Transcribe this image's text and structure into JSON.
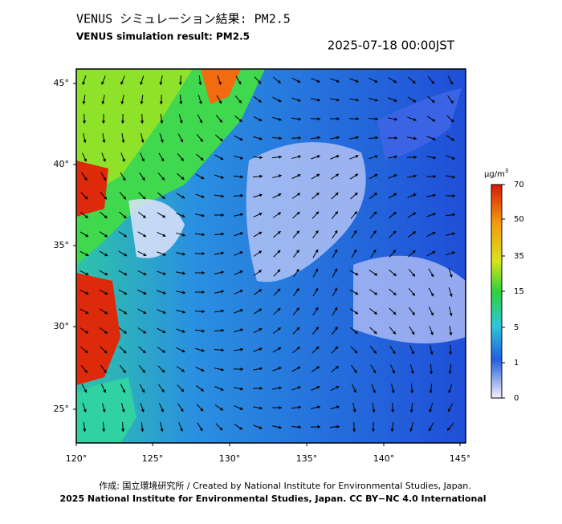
{
  "header": {
    "title_ja": "VENUS シミュレーション結果: PM2.5",
    "title_en": "VENUS simulation result: PM2.5",
    "timestamp": "2025-07-18 00:00JST"
  },
  "map": {
    "lat_labels": [
      "45°",
      "40°",
      "35°",
      "30°",
      "25°"
    ],
    "lon_labels": [
      "120°",
      "125°",
      "130°",
      "135°",
      "140°",
      "145°"
    ]
  },
  "colorbar": {
    "unit": "μg/m",
    "unit_sup": "3",
    "ticks": [
      "70",
      "50",
      "35",
      "15",
      "5",
      "1",
      "0"
    ]
  },
  "footer": {
    "credit": "作成: 国立環境研究所 / Created by National Institute for Environmental Studies, Japan.",
    "license": "2025 National Institute for Environmental Studies, Japan. CC BY−NC 4.0 International"
  }
}
